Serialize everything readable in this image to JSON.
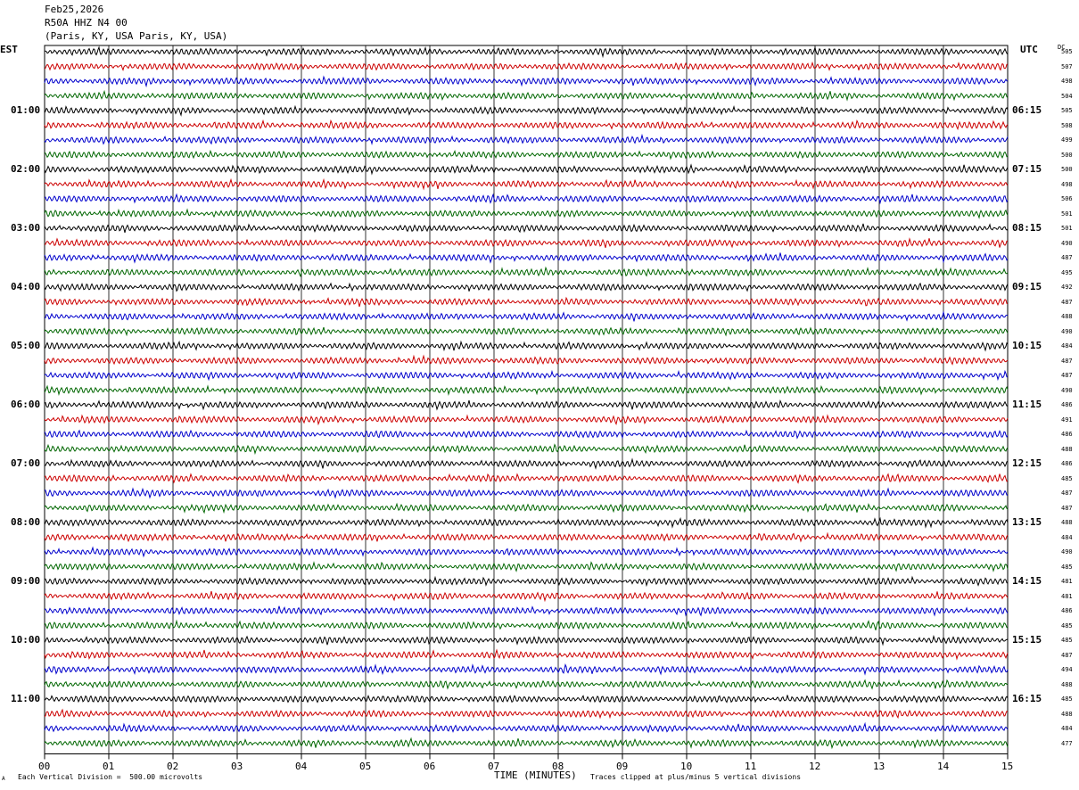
{
  "header": {
    "date": "Feb25,2026",
    "station": "R50A HHZ N4 00",
    "location": "(Paris, KY, USA Paris, KY, USA)"
  },
  "axes": {
    "left_tz": "EST",
    "right_tz": "UTC",
    "dc_label": "DC",
    "x_title": "TIME (MINUTES)",
    "x_ticks": [
      "00",
      "01",
      "02",
      "03",
      "04",
      "05",
      "06",
      "07",
      "08",
      "09",
      "10",
      "11",
      "12",
      "13",
      "14",
      "15"
    ]
  },
  "footer": {
    "scale_note": "Each Vertical Division =  500.00 microvolts",
    "clip_note": "Traces clipped at plus/minus 5 vertical divisions",
    "corner_mark": "A"
  },
  "colors": {
    "trace_cycle": [
      "#000000",
      "#cc0000",
      "#0000cc",
      "#006600"
    ],
    "grid": "#000000"
  },
  "chart_data": {
    "type": "line",
    "description_type": "helicorder",
    "minutes_per_line": 15,
    "line_count": 48,
    "left_hour_labels": [
      "01:00",
      "02:00",
      "03:00",
      "04:00",
      "05:00",
      "06:00",
      "07:00",
      "08:00",
      "09:00",
      "10:00",
      "11:00"
    ],
    "right_hour_labels": [
      "06:15",
      "07:15",
      "08:15",
      "09:15",
      "10:15",
      "11:15",
      "12:15",
      "13:15",
      "14:15",
      "15:15",
      "16:15"
    ],
    "dc_offsets": [
      505,
      507,
      498,
      504,
      505,
      508,
      499,
      500,
      500,
      498,
      506,
      501,
      501,
      490,
      487,
      495,
      492,
      487,
      488,
      490,
      484,
      487,
      487,
      490,
      486,
      491,
      486,
      488,
      486,
      485,
      487,
      487,
      488,
      484,
      490,
      485,
      481,
      481,
      486,
      485,
      485,
      487,
      494,
      488,
      485,
      488,
      484,
      477
    ]
  }
}
